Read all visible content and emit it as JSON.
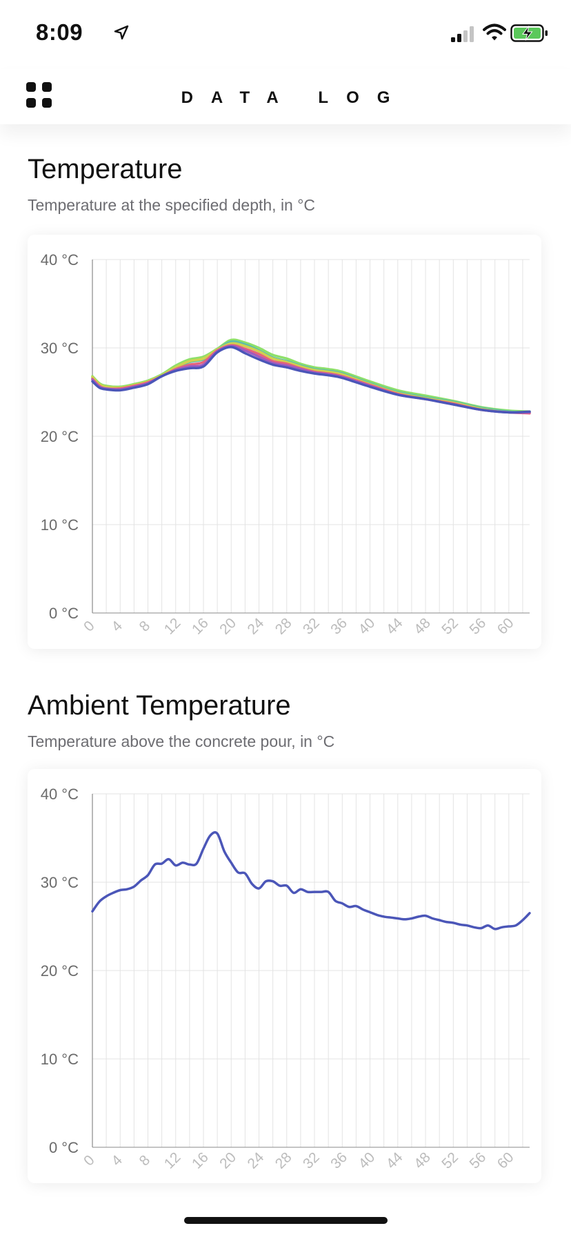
{
  "status_bar": {
    "time": "8:09"
  },
  "header": {
    "title": "DATA LOG"
  },
  "sections": [
    {
      "title": "Temperature",
      "subtitle": "Temperature at the specified depth, in °C"
    },
    {
      "title": "Ambient Temperature",
      "subtitle": "Temperature above the concrete pour, in °C"
    }
  ],
  "colors": {
    "grid": "#e3e3e3",
    "axis": "#8a8a8a",
    "ytick": "#6b6b6b",
    "xtick": "#bcbcbc",
    "ambient": "#4b56b8"
  },
  "chart_data": [
    {
      "type": "line",
      "title": "",
      "ylim": [
        0,
        40
      ],
      "xlim": [
        0,
        63
      ],
      "y_ticks": [
        "40 °C",
        "30 °C",
        "20 °C",
        "10 °C",
        "0 °C"
      ],
      "y_tick_values": [
        40,
        30,
        20,
        10,
        0
      ],
      "x_ticks": [
        "0",
        "4",
        "8",
        "12",
        "16",
        "20",
        "24",
        "28",
        "32",
        "36",
        "40",
        "44",
        "48",
        "52",
        "56",
        "60"
      ],
      "x_tick_values": [
        0,
        4,
        8,
        12,
        16,
        20,
        24,
        28,
        32,
        36,
        40,
        44,
        48,
        52,
        56,
        60
      ],
      "grid": true,
      "x": [
        0,
        1,
        2,
        4,
        6,
        8,
        10,
        12,
        14,
        16,
        18,
        20,
        22,
        24,
        26,
        28,
        30,
        32,
        34,
        36,
        40,
        44,
        48,
        52,
        56,
        60,
        63
      ],
      "series": [
        {
          "color": "#8ee06a",
          "values": [
            26.8,
            26.0,
            25.7,
            25.6,
            25.9,
            26.3,
            27.0,
            28.0,
            28.7,
            29.0,
            29.9,
            30.9,
            30.6,
            30.0,
            29.2,
            28.8,
            28.2,
            27.8,
            27.6,
            27.3,
            26.2,
            25.2,
            24.6,
            24.0,
            23.3,
            22.9,
            22.8
          ]
        },
        {
          "color": "#5cc0a8",
          "values": [
            26.6,
            25.8,
            25.5,
            25.5,
            25.7,
            26.2,
            26.8,
            27.7,
            28.4,
            28.7,
            29.8,
            30.7,
            30.4,
            29.7,
            28.9,
            28.5,
            28.0,
            27.6,
            27.4,
            27.1,
            26.0,
            25.0,
            24.4,
            23.9,
            23.2,
            22.8,
            22.7
          ]
        },
        {
          "color": "#d0d050",
          "values": [
            26.7,
            25.9,
            25.6,
            25.5,
            25.8,
            26.2,
            26.9,
            27.8,
            28.5,
            28.8,
            29.8,
            30.5,
            30.2,
            29.6,
            28.8,
            28.4,
            27.9,
            27.5,
            27.3,
            27.0,
            25.9,
            24.9,
            24.3,
            23.8,
            23.1,
            22.7,
            22.7
          ]
        },
        {
          "color": "#e5647a",
          "values": [
            26.5,
            25.7,
            25.4,
            25.4,
            25.7,
            26.1,
            26.8,
            27.6,
            28.1,
            28.4,
            29.7,
            30.3,
            29.9,
            29.3,
            28.5,
            28.2,
            27.7,
            27.3,
            27.1,
            26.8,
            25.8,
            24.8,
            24.2,
            23.7,
            23.0,
            22.7,
            22.6
          ]
        },
        {
          "color": "#a05bc0",
          "values": [
            26.4,
            25.6,
            25.4,
            25.3,
            25.6,
            26.0,
            26.8,
            27.5,
            27.9,
            28.1,
            29.6,
            30.2,
            29.7,
            29.0,
            28.3,
            28.0,
            27.6,
            27.2,
            27.0,
            26.7,
            25.7,
            24.7,
            24.2,
            23.6,
            23.0,
            22.7,
            22.7
          ]
        },
        {
          "color": "#4b56b8",
          "values": [
            26.2,
            25.5,
            25.3,
            25.2,
            25.5,
            25.9,
            26.8,
            27.4,
            27.7,
            27.9,
            29.5,
            30.1,
            29.4,
            28.7,
            28.1,
            27.8,
            27.4,
            27.1,
            26.9,
            26.6,
            25.6,
            24.7,
            24.2,
            23.6,
            23.0,
            22.7,
            22.8
          ]
        }
      ]
    },
    {
      "type": "line",
      "title": "",
      "ylim": [
        0,
        40
      ],
      "xlim": [
        0,
        63
      ],
      "y_ticks": [
        "40 °C",
        "30 °C",
        "20 °C",
        "10 °C",
        "0 °C"
      ],
      "y_tick_values": [
        40,
        30,
        20,
        10,
        0
      ],
      "x_ticks": [
        "0",
        "4",
        "8",
        "12",
        "16",
        "20",
        "24",
        "28",
        "32",
        "36",
        "40",
        "44",
        "48",
        "52",
        "56",
        "60"
      ],
      "x_tick_values": [
        0,
        4,
        8,
        12,
        16,
        20,
        24,
        28,
        32,
        36,
        40,
        44,
        48,
        52,
        56,
        60
      ],
      "grid": true,
      "x": [
        0,
        1,
        2,
        3,
        4,
        5,
        6,
        7,
        8,
        9,
        10,
        11,
        12,
        13,
        14,
        15,
        16,
        17,
        18,
        19,
        20,
        21,
        22,
        23,
        24,
        25,
        26,
        27,
        28,
        29,
        30,
        31,
        32,
        33,
        34,
        35,
        36,
        37,
        38,
        39,
        40,
        41,
        42,
        43,
        44,
        45,
        46,
        47,
        48,
        49,
        50,
        51,
        52,
        53,
        54,
        55,
        56,
        57,
        58,
        59,
        60,
        61,
        62,
        63
      ],
      "series": [
        {
          "color": "#4b56b8",
          "values": [
            26.7,
            27.8,
            28.4,
            28.8,
            29.1,
            29.2,
            29.5,
            30.2,
            30.8,
            32.0,
            32.1,
            32.6,
            31.9,
            32.2,
            32.0,
            32.1,
            33.8,
            35.3,
            35.5,
            33.5,
            32.2,
            31.1,
            31.0,
            29.8,
            29.3,
            30.1,
            30.1,
            29.6,
            29.6,
            28.8,
            29.2,
            28.9,
            28.9,
            28.9,
            28.9,
            27.9,
            27.6,
            27.2,
            27.3,
            26.9,
            26.6,
            26.3,
            26.1,
            26.0,
            25.9,
            25.8,
            25.9,
            26.1,
            26.2,
            25.9,
            25.7,
            25.5,
            25.4,
            25.2,
            25.1,
            24.9,
            24.8,
            25.1,
            24.7,
            24.9,
            25.0,
            25.1,
            25.7,
            26.5
          ]
        }
      ]
    }
  ]
}
